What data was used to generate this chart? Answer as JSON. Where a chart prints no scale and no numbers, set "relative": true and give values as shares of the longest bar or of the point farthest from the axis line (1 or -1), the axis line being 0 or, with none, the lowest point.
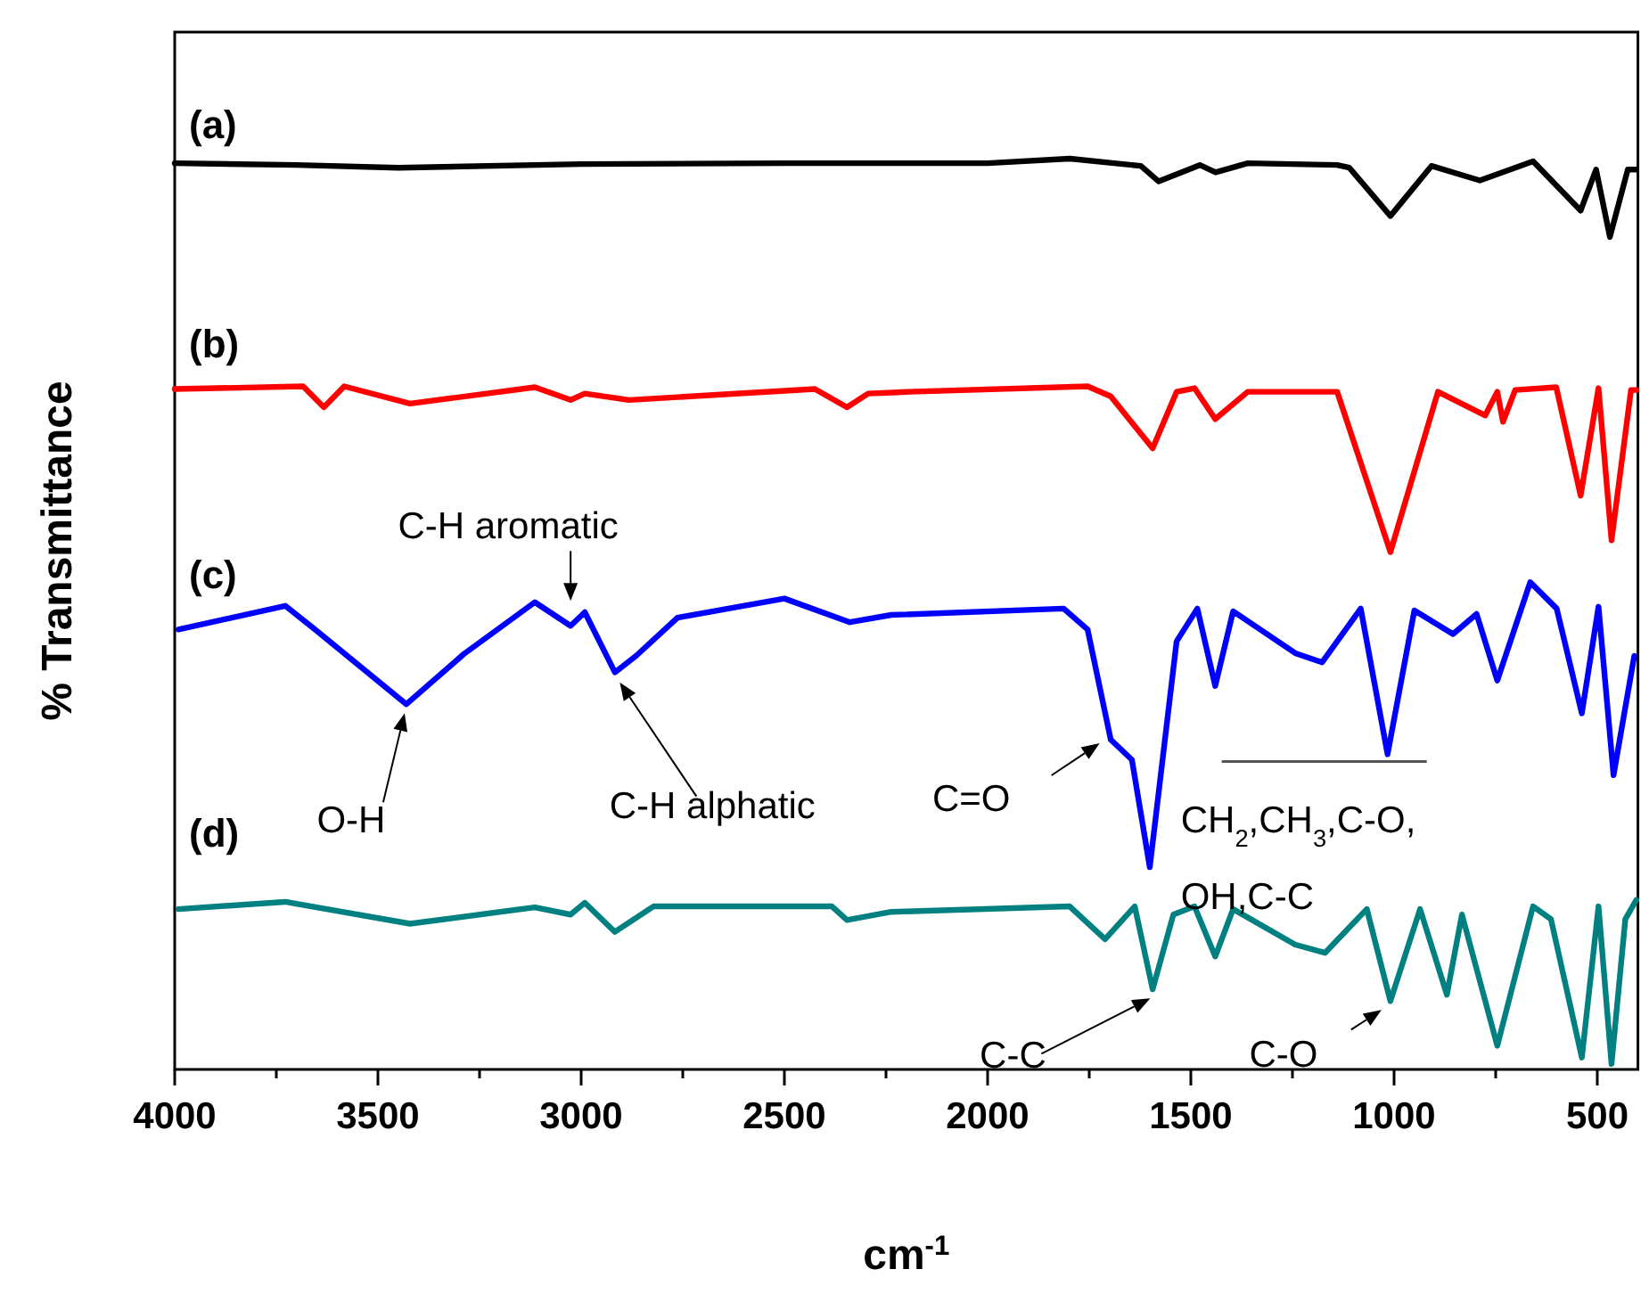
{
  "chart_data": {
    "type": "line",
    "xlabel": "cm$^{-1}$",
    "ylabel": "% Transmittance",
    "relative": true,
    "xlim": [
      4000,
      400
    ],
    "xticks": [
      4000,
      {
        "value": 3750,
        "label": null
      },
      3500,
      {
        "value": 3250,
        "label": null
      },
      3000,
      {
        "value": 2750,
        "label": null
      },
      2500,
      {
        "value": 2250,
        "label": null
      },
      2000,
      {
        "value": 1750,
        "label": null
      },
      1500,
      {
        "value": 1250,
        "label": null
      },
      1000,
      {
        "value": 750,
        "label": null
      },
      500
    ],
    "series": [
      {
        "name": "(a)",
        "color": "#000000",
        "x": [
          4000,
          3700,
          3450,
          3000,
          2500,
          2000,
          1798,
          1623,
          1579,
          1478,
          1439,
          1360,
          1140,
          1110,
          1009,
          908,
          789,
          658,
          541,
          503,
          469,
          425,
          404
        ],
        "values": [
          0.995,
          0.993,
          0.99,
          0.994,
          0.995,
          0.995,
          1,
          0.992,
          0.975,
          0.993,
          0.985,
          0.995,
          0.993,
          0.99,
          0.937,
          0.992,
          0.976,
          0.997,
          0.943,
          0.988,
          0.914,
          0.988,
          0.988
        ]
      },
      {
        "name": "(b)",
        "color": "#ff0000",
        "x": [
          4000,
          3684,
          3633,
          3583,
          3421,
          3114,
          3026,
          2991,
          2882,
          2425,
          2346,
          2294,
          2193,
          1754,
          1697,
          1594,
          1535,
          1491,
          1440,
          1360,
          1140,
          1009,
          892,
          776,
          746,
          732,
          702,
          601,
          541,
          497,
          465,
          417,
          404
        ],
        "values": [
          0.747,
          0.75,
          0.727,
          0.75,
          0.731,
          0.749,
          0.735,
          0.742,
          0.735,
          0.747,
          0.727,
          0.742,
          0.744,
          0.75,
          0.739,
          0.682,
          0.744,
          0.748,
          0.714,
          0.744,
          0.744,
          0.568,
          0.744,
          0.718,
          0.744,
          0.711,
          0.746,
          0.749,
          0.63,
          0.748,
          0.581,
          0.746,
          0.746
        ]
      },
      {
        "name": "(c)",
        "color": "#0000ff",
        "x": [
          3991,
          3728,
          3655,
          3430,
          3289,
          3114,
          3026,
          2991,
          2917,
          2865,
          2763,
          2500,
          2339,
          2237,
          1813,
          1754,
          1697,
          1645,
          1601,
          1535,
          1484,
          1440,
          1396,
          1243,
          1177,
          1082,
          1016,
          950,
          855,
          797,
          746,
          665,
          600,
          538,
          497,
          460,
          409
        ],
        "values": [
          0.483,
          0.509,
          0.483,
          0.401,
          0.456,
          0.513,
          0.487,
          0.502,
          0.436,
          0.454,
          0.496,
          0.517,
          0.491,
          0.499,
          0.506,
          0.483,
          0.362,
          0.34,
          0.222,
          0.47,
          0.506,
          0.421,
          0.503,
          0.457,
          0.447,
          0.506,
          0.346,
          0.504,
          0.478,
          0.5,
          0.427,
          0.535,
          0.506,
          0.391,
          0.508,
          0.323,
          0.454
        ]
      },
      {
        "name": "(d)",
        "color": "#008080",
        "x": [
          3991,
          3728,
          3421,
          3114,
          3026,
          2991,
          2917,
          2822,
          2383,
          2346,
          2237,
          1798,
          1711,
          1638,
          1594,
          1543,
          1491,
          1440,
          1396,
          1243,
          1170,
          1067,
          1009,
          936,
          870,
          833,
          746,
          658,
          614,
          538,
          497,
          465,
          431,
          404
        ],
        "values": [
          0.176,
          0.184,
          0.16,
          0.178,
          0.17,
          0.183,
          0.151,
          0.179,
          0.179,
          0.164,
          0.173,
          0.179,
          0.143,
          0.179,
          0.088,
          0.17,
          0.179,
          0.124,
          0.176,
          0.137,
          0.128,
          0.176,
          0.075,
          0.176,
          0.082,
          0.17,
          0.026,
          0.179,
          0.165,
          0.013,
          0.179,
          0.006,
          0.165,
          0.186
        ]
      }
    ],
    "annotations": [
      {
        "text": "C-H aromatic",
        "x": 3026,
        "y": 0.487
      },
      {
        "text": "O-H",
        "x": 3430,
        "y": 0.401
      },
      {
        "text": "C-H alphatic",
        "x": 2905,
        "y": 0.425
      },
      {
        "text": "C=O",
        "x": 1720,
        "y": 0.362
      },
      {
        "text": "CH$_{2}$,CH$_{3}$,C-O, OH,C-C",
        "x": 1016,
        "y": 0.346
      },
      {
        "text": "C-C",
        "x": 1600,
        "y": 0.078
      },
      {
        "text": "C-O",
        "x": 1009,
        "y": 0.075
      }
    ]
  }
}
